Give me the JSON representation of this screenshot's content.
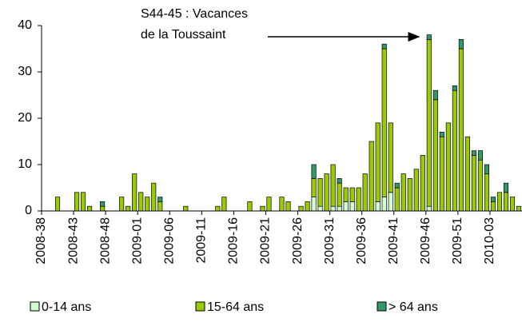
{
  "chart_data": {
    "type": "stacked_bar",
    "annotation": [
      "S44-45 : Vacances",
      "de la Toussaint"
    ],
    "categories": [
      "2008-38",
      null,
      null,
      null,
      null,
      "2008-43",
      null,
      null,
      null,
      null,
      "2008-48",
      null,
      null,
      null,
      null,
      "2009-01",
      null,
      null,
      null,
      null,
      "2009-06",
      null,
      null,
      null,
      null,
      "2009-11",
      null,
      null,
      null,
      null,
      "2009-16",
      null,
      null,
      null,
      null,
      "2009-21",
      null,
      null,
      null,
      null,
      "2009-26",
      null,
      null,
      null,
      null,
      "2009-31",
      null,
      null,
      null,
      null,
      "2009-36",
      null,
      null,
      null,
      null,
      "2009-41",
      null,
      null,
      null,
      null,
      "2009-46",
      null,
      null,
      null,
      null,
      "2009-51",
      null,
      null,
      null,
      null,
      "2010-03",
      null,
      null,
      null,
      null
    ],
    "series": [
      {
        "name": "0-14 ans",
        "color": "#ccffcc",
        "values": [
          0,
          0,
          0,
          0,
          0,
          0,
          0,
          0,
          0,
          0,
          0,
          0,
          0,
          0,
          0,
          0,
          0,
          0,
          0,
          0,
          0,
          0,
          0,
          0,
          0,
          0,
          0,
          0,
          0,
          0,
          0,
          0,
          0,
          0,
          0,
          0,
          0,
          0,
          0,
          0,
          0,
          0,
          3,
          1,
          0,
          1,
          1,
          2,
          2,
          0,
          0,
          0,
          2,
          3,
          4,
          0,
          0,
          0,
          0,
          0,
          1,
          0,
          0,
          0,
          0,
          0,
          0,
          0,
          0,
          0,
          0,
          0,
          0,
          0,
          0
        ]
      },
      {
        "name": "15-64 ans",
        "color": "#99cc00",
        "values": [
          0,
          0,
          3,
          0,
          0,
          4,
          4,
          1,
          0,
          1,
          0,
          0,
          3,
          1,
          8,
          4,
          3,
          6,
          2,
          0,
          0,
          0,
          1,
          0,
          0,
          0,
          0,
          1,
          3,
          0,
          0,
          0,
          2,
          0,
          1,
          3,
          0,
          3,
          2,
          0,
          1,
          2,
          4,
          6,
          8,
          9,
          5,
          3,
          3,
          5,
          8,
          15,
          17,
          32,
          15,
          5,
          8,
          7,
          9,
          12,
          36,
          24,
          16,
          19,
          26,
          35,
          16,
          12,
          11,
          8,
          2,
          4,
          4,
          3,
          1
        ]
      },
      {
        "name": "> 64 ans",
        "color": "#339966",
        "values": [
          0,
          0,
          0,
          0,
          0,
          0,
          0,
          0,
          0,
          1,
          0,
          0,
          0,
          0,
          0,
          0,
          0,
          0,
          1,
          0,
          0,
          0,
          0,
          0,
          0,
          0,
          0,
          0,
          0,
          0,
          0,
          0,
          0,
          0,
          0,
          0,
          0,
          0,
          0,
          0,
          0,
          0,
          3,
          0,
          0,
          0,
          1,
          0,
          0,
          0,
          0,
          0,
          0,
          1,
          0,
          1,
          0,
          0,
          0,
          0,
          1,
          2,
          1,
          0,
          1,
          2,
          0,
          1,
          2,
          2,
          1,
          0,
          2,
          0,
          0
        ]
      }
    ],
    "ylim": [
      0,
      40
    ],
    "yticks": [
      0,
      10,
      20,
      30,
      40
    ]
  }
}
